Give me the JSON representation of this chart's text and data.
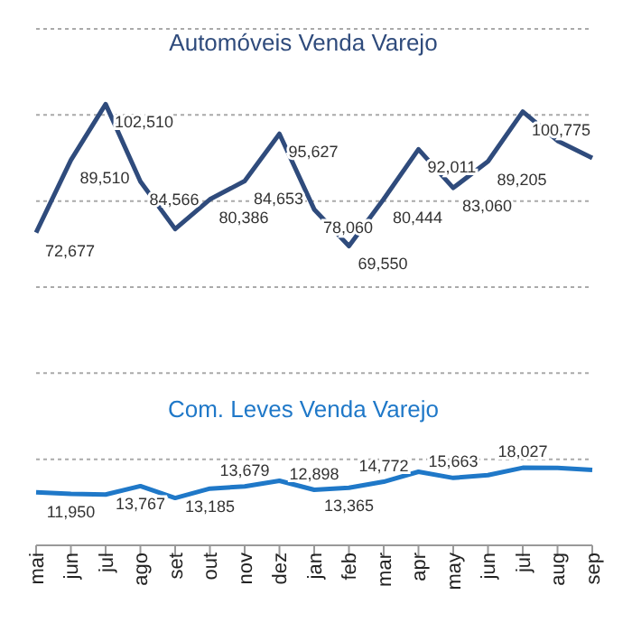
{
  "chart_data": {
    "type": "line",
    "categories": [
      "mai",
      "jun",
      "jul",
      "ago",
      "set",
      "out",
      "nov",
      "dez",
      "jan",
      "feb",
      "mar",
      "apr",
      "may",
      "jun",
      "jul",
      "aug",
      "sep"
    ],
    "series": [
      {
        "name": "Automóveis Venda Varejo",
        "color": "#2f4b7c",
        "values": [
          72677,
          89510,
          102510,
          84566,
          73500,
          80386,
          84653,
          95627,
          78060,
          69550,
          80444,
          92011,
          83060,
          89205,
          100775,
          94000,
          90000
        ],
        "value_labels": [
          "72,677",
          "89,510",
          "102,510",
          "84,566",
          null,
          "80,386",
          "84,653",
          "95,627",
          "78,060",
          "69,550",
          "80,444",
          "92,011",
          "83,060",
          "89,205",
          "100,775",
          null,
          null
        ]
      },
      {
        "name": "Com. Leves Venda Varejo",
        "color": "#1f78c8",
        "values": [
          12300,
          11950,
          11800,
          13767,
          11000,
          13185,
          13679,
          15000,
          12898,
          13365,
          14772,
          17100,
          15663,
          16300,
          18027,
          18000,
          17500
        ],
        "value_labels": [
          null,
          "11,950",
          null,
          "13,767",
          null,
          "13,185",
          "13,679",
          null,
          "12,898",
          "13,365",
          "14,772",
          null,
          "15,663",
          null,
          "18,027",
          null,
          null
        ]
      }
    ],
    "ylim": [
      0,
      120000
    ],
    "yticks": [
      0,
      20000,
      40000,
      60000,
      80000,
      100000,
      120000
    ],
    "grid": "y",
    "tick_labels": "x",
    "marker": "none",
    "line_style": "solid"
  }
}
